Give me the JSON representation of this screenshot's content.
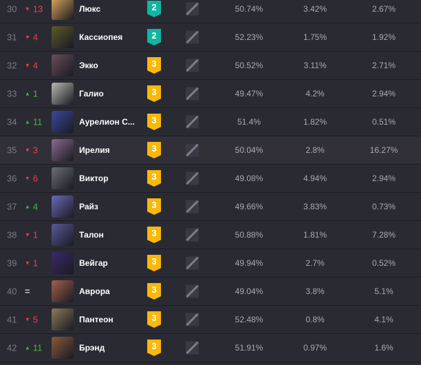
{
  "colors": {
    "tier2": "#13b5a2",
    "tier3": "#f8b80c",
    "down": "#e8414f",
    "up": "#3dba45"
  },
  "rows": [
    {
      "rank": "30",
      "dir": "down",
      "change": "13",
      "name": "Люкс",
      "tier": "2",
      "c1": "50.74%",
      "c2": "3.42%",
      "c3": "2.67%",
      "ava": "#d9a55a"
    },
    {
      "rank": "31",
      "dir": "down",
      "change": "4",
      "name": "Кассиопея",
      "tier": "2",
      "c1": "52.23%",
      "c2": "1.75%",
      "c3": "1.92%",
      "ava": "#5c5a2a"
    },
    {
      "rank": "32",
      "dir": "down",
      "change": "4",
      "name": "Экко",
      "tier": "3",
      "c1": "50.52%",
      "c2": "3.11%",
      "c3": "2.71%",
      "ava": "#6a4e58"
    },
    {
      "rank": "33",
      "dir": "up",
      "change": "1",
      "name": "Галио",
      "tier": "3",
      "c1": "49.47%",
      "c2": "4.2%",
      "c3": "2.94%",
      "ava": "#b8b8b0"
    },
    {
      "rank": "34",
      "dir": "up",
      "change": "11",
      "name": "Аурелион С...",
      "tier": "3",
      "c1": "51.4%",
      "c2": "1.82%",
      "c3": "0.51%",
      "ava": "#3a4a9a"
    },
    {
      "rank": "35",
      "dir": "down",
      "change": "3",
      "name": "Ирелия",
      "tier": "3",
      "c1": "50.04%",
      "c2": "2.8%",
      "c3": "16.27%",
      "ava": "#8a6a90"
    },
    {
      "rank": "36",
      "dir": "down",
      "change": "6",
      "name": "Виктор",
      "tier": "3",
      "c1": "49.08%",
      "c2": "4.94%",
      "c3": "2.94%",
      "ava": "#6a6e78"
    },
    {
      "rank": "37",
      "dir": "up",
      "change": "4",
      "name": "Райз",
      "tier": "3",
      "c1": "49.66%",
      "c2": "3.83%",
      "c3": "0.73%",
      "ava": "#6a6ab8"
    },
    {
      "rank": "38",
      "dir": "down",
      "change": "1",
      "name": "Талон",
      "tier": "3",
      "c1": "50.88%",
      "c2": "1.81%",
      "c3": "7.28%",
      "ava": "#5a5a9a"
    },
    {
      "rank": "39",
      "dir": "down",
      "change": "1",
      "name": "Вейгар",
      "tier": "3",
      "c1": "49.94%",
      "c2": "2.7%",
      "c3": "0.52%",
      "ava": "#3a2a6a"
    },
    {
      "rank": "40",
      "dir": "eq",
      "change": "=",
      "name": "Аврора",
      "tier": "3",
      "c1": "49.04%",
      "c2": "3.8%",
      "c3": "5.1%",
      "ava": "#a0604a"
    },
    {
      "rank": "41",
      "dir": "down",
      "change": "5",
      "name": "Пантеон",
      "tier": "3",
      "c1": "52.48%",
      "c2": "0.8%",
      "c3": "4.1%",
      "ava": "#8a7a5a"
    },
    {
      "rank": "42",
      "dir": "up",
      "change": "11",
      "name": "Брэнд",
      "tier": "3",
      "c1": "51.91%",
      "c2": "0.97%",
      "c3": "1.6%",
      "ava": "#8a5a3a"
    }
  ],
  "hover_row": "35"
}
